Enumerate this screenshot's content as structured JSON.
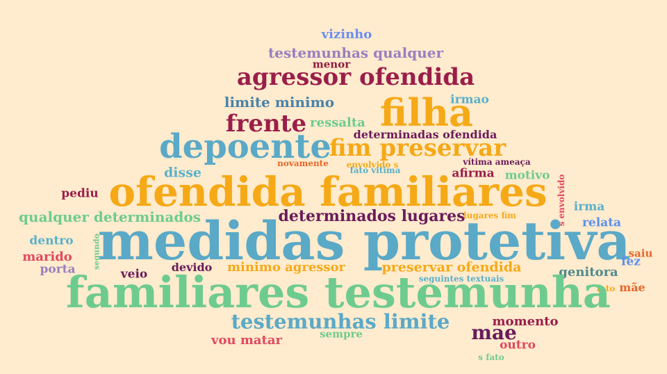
{
  "palette": {
    "background": "#ffebcd",
    "teal": "#5aa9c7",
    "gold": "#f5a917",
    "crimson": "#9a1e4a",
    "green": "#6ecb8f",
    "purple": "#9a6fb8",
    "plum": "#6a1b5a",
    "red": "#e0485f",
    "orange": "#e8662a",
    "blue": "#5b8ff0",
    "slate": "#4f8a8e"
  },
  "words": [
    {
      "text": "vizinho",
      "color": "#6b8ff0"
    },
    {
      "text": "testemunhas qualquer",
      "color": "#9a7fbf"
    },
    {
      "text": "menor",
      "color": "#8e1b3f"
    },
    {
      "text": "agressor ofendida",
      "color": "#9a1e4a"
    },
    {
      "text": "limite minimo",
      "color": "#4a82a8"
    },
    {
      "text": "irmao",
      "color": "#5ab0c9"
    },
    {
      "text": "filha",
      "color": "#f5a917"
    },
    {
      "text": "frente",
      "color": "#9a1e4a"
    },
    {
      "text": "ressalta",
      "color": "#6ecb8f"
    },
    {
      "text": "determinadas ofendida",
      "color": "#6a1b5a"
    },
    {
      "text": "depoente",
      "color": "#5aa9c7"
    },
    {
      "text": "fim preservar",
      "color": "#f5a917"
    },
    {
      "text": "novamente",
      "color": "#e8662a"
    },
    {
      "text": "envolvido s",
      "color": "#f5a917"
    },
    {
      "text": "vítima ameaça",
      "color": "#6a1b5a"
    },
    {
      "text": "disse",
      "color": "#5ab0c9"
    },
    {
      "text": "fato vitima",
      "color": "#5ab0c9"
    },
    {
      "text": "afirma",
      "color": "#9a1e4a"
    },
    {
      "text": "motivo",
      "color": "#6ecb8f"
    },
    {
      "text": "s envolvido",
      "color": "#e0485f"
    },
    {
      "text": "pediu",
      "color": "#9a1e4a"
    },
    {
      "text": "ofendida familiares",
      "color": "#f5a917"
    },
    {
      "text": "irma",
      "color": "#5ab0c9"
    },
    {
      "text": "qualquer determinados",
      "color": "#6ecb8f"
    },
    {
      "text": "determinados lugares",
      "color": "#6a1b5a"
    },
    {
      "text": "lugares fim",
      "color": "#f5a917"
    },
    {
      "text": "relata",
      "color": "#5b8ff0"
    },
    {
      "text": "dentro",
      "color": "#5ab0c9"
    },
    {
      "text": "segundo",
      "color": "#6ecb8f"
    },
    {
      "text": "medidas protetiva",
      "color": "#5aa9c7"
    },
    {
      "text": "saiu",
      "color": "#e8662a"
    },
    {
      "text": "marido",
      "color": "#e0485f"
    },
    {
      "text": "fez",
      "color": "#5b8ff0"
    },
    {
      "text": "porta",
      "color": "#9a7fbf"
    },
    {
      "text": "devido",
      "color": "#6a1b5a"
    },
    {
      "text": "minimo agressor",
      "color": "#f5a917"
    },
    {
      "text": "preservar ofendida",
      "color": "#f5a917"
    },
    {
      "text": "genitora",
      "color": "#4f8a8e"
    },
    {
      "text": "veio",
      "color": "#6a1b5a"
    },
    {
      "text": "seguintes textuais",
      "color": "#5ab0c9"
    },
    {
      "text": "fato",
      "color": "#f5a917"
    },
    {
      "text": "mãe",
      "color": "#e8662a"
    },
    {
      "text": "familiares testemunha",
      "color": "#6ecb8f"
    },
    {
      "text": "testemunhas limite",
      "color": "#5aa9c7"
    },
    {
      "text": "momento",
      "color": "#9a1e4a"
    },
    {
      "text": "mae",
      "color": "#6a1b5a"
    },
    {
      "text": "vou matar",
      "color": "#e0485f"
    },
    {
      "text": "sempre",
      "color": "#6ecb8f"
    },
    {
      "text": "outro",
      "color": "#e0485f"
    },
    {
      "text": "s fato",
      "color": "#6ecb8f"
    }
  ]
}
